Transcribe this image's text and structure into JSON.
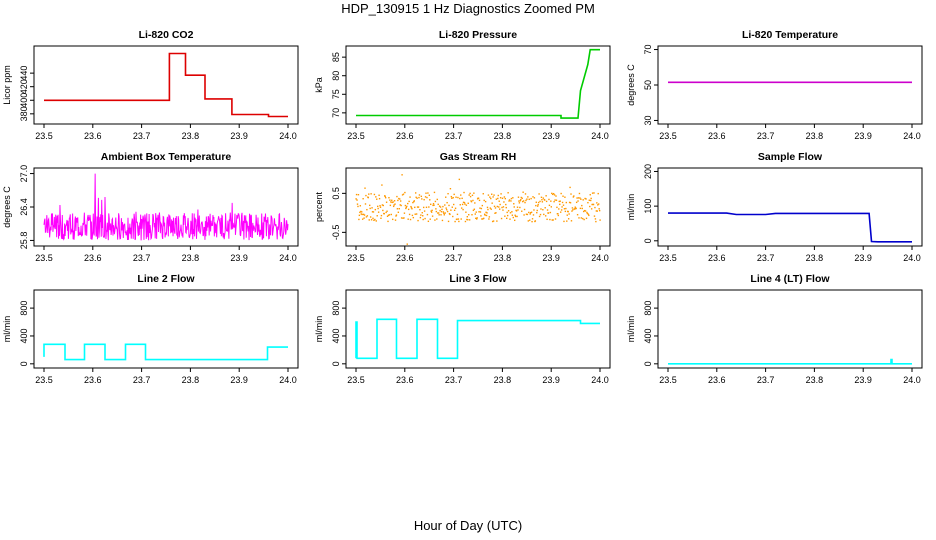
{
  "title": "HDP_130915  1 Hz Diagnostics Zoomed PM",
  "footer_xlabel": "Hour of Day (UTC)",
  "chart_data": [
    {
      "type": "line",
      "title": "Li-820 CO2",
      "xlabel": "",
      "ylabel": "Licor ppm",
      "color": "#dd0000",
      "xlim": [
        23.5,
        24.0
      ],
      "ylim": [
        365,
        480
      ],
      "xticks": [
        "23.5",
        "23.6",
        "23.7",
        "23.8",
        "23.9",
        "24.0"
      ],
      "yticks": [
        "380",
        "400",
        "420",
        "440"
      ],
      "x": [
        23.5,
        23.757,
        23.757,
        23.79,
        23.79,
        23.83,
        23.83,
        23.885,
        23.885,
        23.96,
        23.96,
        24.0
      ],
      "y": [
        400,
        400,
        469,
        469,
        437,
        437,
        402,
        402,
        379,
        379,
        376,
        376
      ]
    },
    {
      "type": "line",
      "title": "Li-820 Pressure",
      "xlabel": "",
      "ylabel": "kPa",
      "color": "#00cc00",
      "xlim": [
        23.5,
        24.0
      ],
      "ylim": [
        67,
        88
      ],
      "xticks": [
        "23.5",
        "23.6",
        "23.7",
        "23.8",
        "23.9",
        "24.0"
      ],
      "yticks": [
        "70",
        "75",
        "80",
        "85"
      ],
      "x": [
        23.5,
        23.92,
        23.92,
        23.955,
        23.96,
        23.975,
        23.98,
        24.0
      ],
      "y": [
        69.3,
        69.3,
        68.6,
        68.6,
        76,
        83,
        87,
        87
      ]
    },
    {
      "type": "line",
      "title": "Li-820 Temperature",
      "xlabel": "",
      "ylabel": "degrees C",
      "color": "#cc00cc",
      "xlim": [
        23.5,
        24.0
      ],
      "ylim": [
        28,
        72
      ],
      "xticks": [
        "23.5",
        "23.6",
        "23.7",
        "23.8",
        "23.9",
        "24.0"
      ],
      "yticks": [
        "30",
        "50",
        "70"
      ],
      "x": [
        23.5,
        24.0
      ],
      "y": [
        51.5,
        51.5
      ]
    },
    {
      "type": "line",
      "title": "Ambient Box Temperature",
      "xlabel": "",
      "ylabel": "degrees C",
      "color": "#ff00ff",
      "xlim": [
        23.5,
        24.0
      ],
      "ylim": [
        25.7,
        27.1
      ],
      "xticks": [
        "23.5",
        "23.6",
        "23.7",
        "23.8",
        "23.9",
        "24.0"
      ],
      "yticks": [
        "25.8",
        "26.4",
        "27.0"
      ],
      "noise": {
        "base": 26.05,
        "amp": 0.5,
        "spike_to": 27.0
      }
    },
    {
      "type": "scatter",
      "title": "Gas Stream RH",
      "xlabel": "",
      "ylabel": "percent",
      "color": "#ff9900",
      "xlim": [
        23.5,
        24.0
      ],
      "ylim": [
        -0.85,
        1.15
      ],
      "xticks": [
        "23.5",
        "23.6",
        "23.7",
        "23.8",
        "23.9",
        "24.0"
      ],
      "yticks": [
        "-0.5",
        "0.5"
      ],
      "noise": {
        "base": 0.15,
        "amp": 0.75,
        "spike_to": -0.8
      }
    },
    {
      "type": "line",
      "title": "Sample Flow",
      "xlabel": "",
      "ylabel": "ml/min",
      "color": "#0000cc",
      "xlim": [
        23.5,
        24.0
      ],
      "ylim": [
        -15,
        210
      ],
      "xticks": [
        "23.5",
        "23.6",
        "23.7",
        "23.8",
        "23.9",
        "24.0"
      ],
      "yticks": [
        "0",
        "100",
        "200"
      ],
      "x": [
        23.5,
        23.62,
        23.64,
        23.7,
        23.72,
        23.912,
        23.917,
        23.93,
        24.0
      ],
      "y": [
        80,
        80,
        76,
        76,
        79,
        79,
        -2,
        -3,
        -3
      ]
    },
    {
      "type": "line",
      "title": "Line 2 Flow",
      "xlabel": "",
      "ylabel": "ml/min",
      "color": "#00ffff",
      "xlim": [
        23.5,
        24.0
      ],
      "ylim": [
        -60,
        1060
      ],
      "xticks": [
        "23.5",
        "23.6",
        "23.7",
        "23.8",
        "23.9",
        "24.0"
      ],
      "yticks": [
        "0",
        "400",
        "800"
      ],
      "x": [
        23.5,
        23.5,
        23.543,
        23.543,
        23.583,
        23.583,
        23.625,
        23.625,
        23.667,
        23.667,
        23.708,
        23.708,
        23.958,
        23.958,
        24.0
      ],
      "y": [
        100,
        280,
        280,
        60,
        60,
        280,
        280,
        60,
        60,
        280,
        280,
        60,
        60,
        240,
        240
      ]
    },
    {
      "type": "line",
      "title": "Line 3 Flow",
      "xlabel": "",
      "ylabel": "ml/min",
      "color": "#00ffff",
      "xlim": [
        23.5,
        24.0
      ],
      "ylim": [
        -60,
        1060
      ],
      "xticks": [
        "23.5",
        "23.6",
        "23.7",
        "23.8",
        "23.9",
        "24.0"
      ],
      "yticks": [
        "0",
        "400",
        "800"
      ],
      "x": [
        23.5,
        23.5,
        23.502,
        23.502,
        23.543,
        23.543,
        23.583,
        23.583,
        23.625,
        23.625,
        23.667,
        23.667,
        23.708,
        23.708,
        23.96,
        23.96,
        24.0
      ],
      "y": [
        80,
        600,
        600,
        80,
        80,
        640,
        640,
        80,
        80,
        640,
        640,
        80,
        80,
        620,
        620,
        580,
        580
      ]
    },
    {
      "type": "line",
      "title": "Line 4 (LT) Flow",
      "xlabel": "",
      "ylabel": "ml/min",
      "color": "#00ffff",
      "xlim": [
        23.5,
        24.0
      ],
      "ylim": [
        -60,
        1060
      ],
      "xticks": [
        "23.5",
        "23.6",
        "23.7",
        "23.8",
        "23.9",
        "24.0"
      ],
      "yticks": [
        "0",
        "400",
        "800"
      ],
      "x": [
        23.5,
        23.957,
        23.957,
        23.959,
        23.959,
        24.0
      ],
      "y": [
        0,
        0,
        60,
        60,
        0,
        0
      ]
    }
  ]
}
